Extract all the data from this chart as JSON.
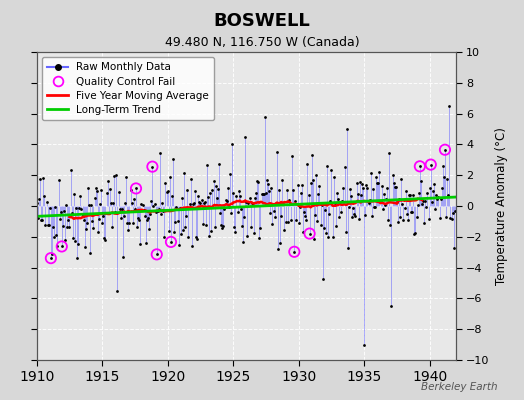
{
  "title": "BOSWELL",
  "subtitle": "49.480 N, 116.750 W (Canada)",
  "ylabel": "Temperature Anomaly (°C)",
  "watermark": "Berkeley Earth",
  "xlim": [
    1910,
    1942
  ],
  "ylim": [
    -10,
    10
  ],
  "xticks": [
    1910,
    1915,
    1920,
    1925,
    1930,
    1935,
    1940
  ],
  "yticks": [
    -10,
    -8,
    -6,
    -4,
    -2,
    0,
    2,
    4,
    6,
    8,
    10
  ],
  "plot_bg_color": "#e8e8e8",
  "fig_bg_color": "#d8d8d8",
  "grid_color": "white",
  "raw_color": "#6666ff",
  "dot_color": "black",
  "qc_color": "magenta",
  "ma_color": "red",
  "trend_color": "#00cc00",
  "legend_loc": "upper left",
  "seed": 42
}
